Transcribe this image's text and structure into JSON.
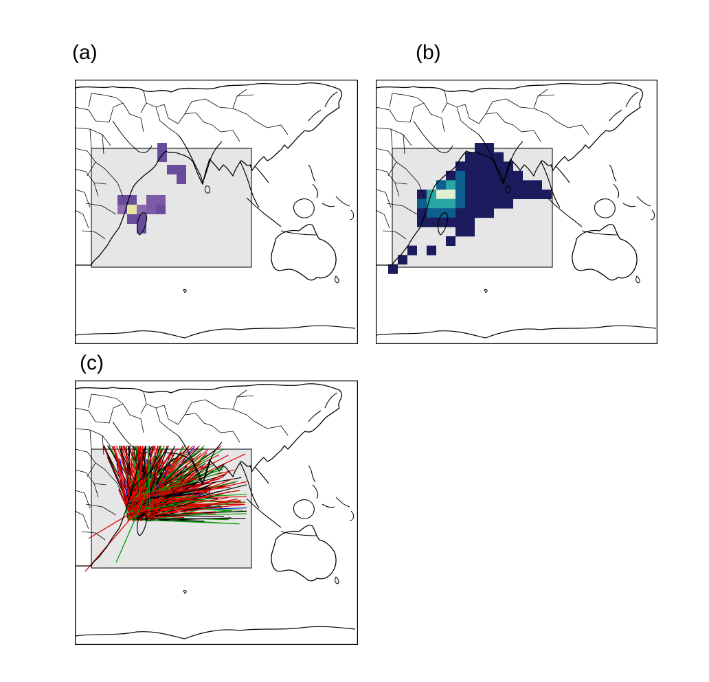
{
  "panels": [
    {
      "label": "(a)",
      "kind": "heatmap",
      "colormap": "purple-yellow"
    },
    {
      "label": "(b)",
      "kind": "heatmap",
      "colormap": "navy-teal-cream"
    },
    {
      "label": "(c)",
      "kind": "trajectories",
      "line_colors": [
        "#e00000",
        "#00a000",
        "#000000",
        "#0000cc"
      ]
    }
  ],
  "colors": {
    "domain_fill": "#e6e6e6",
    "domain_stroke": "#222222",
    "coast": "#000000",
    "a_low": "#6a4c9c",
    "a_mid": "#7d5aa6",
    "a_high": "#e8e5a3",
    "b_low": "#1b1b5e",
    "b_mid": "#0c5f8e",
    "b_teal": "#2aa5a5",
    "b_high": "#e0efd0"
  }
}
